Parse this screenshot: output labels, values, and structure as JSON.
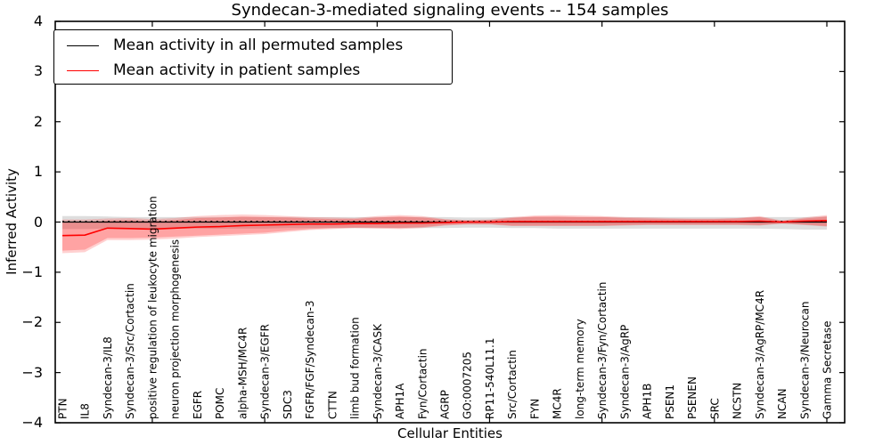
{
  "title": "Syndecan-3-mediated signaling events -- 154 samples",
  "legend": {
    "position": "upper left",
    "items": [
      {
        "label": "Mean activity in all permuted samples",
        "color": "#000000"
      },
      {
        "label": "Mean activity in patient samples",
        "color": "#ff0000"
      }
    ]
  },
  "colors": {
    "patient_line": "#ff0000",
    "permuted_line": "#000000",
    "patient_band_fill": "rgba(255,0,0,0.18)",
    "patient_band_inner_fill": "rgba(255,0,0,0.22)",
    "permuted_band_fill": "rgba(0,0,0,0.13)",
    "axis": "#000000",
    "background": "#ffffff"
  },
  "chart_data": {
    "type": "line",
    "title": "Syndecan-3-mediated signaling events -- 154 samples",
    "xlabel": "Cellular Entities",
    "ylabel": "Inferred Activity",
    "ylim": [
      -4,
      4
    ],
    "y_ticks": [
      4,
      3,
      2,
      1,
      0,
      -1,
      -2,
      -3,
      -4
    ],
    "grid": false,
    "legend_position": "upper left",
    "x_major_tick_indices": [
      4,
      9,
      14,
      19,
      24,
      29,
      34
    ],
    "categories": [
      "PTN",
      "IL8",
      "Syndecan-3/IL8",
      "Syndecan-3/Src/Cortactin",
      "positive regulation of leukocyte migration",
      "neuron projection morphogenesis",
      "EGFR",
      "POMC",
      "alpha-MSH/MC4R",
      "Syndecan-3/EGFR",
      "SDC3",
      "FGFR/FGF/Syndecan-3",
      "CTTN",
      "limb bud formation",
      "Syndecan-3/CASK",
      "APH1A",
      "Fyn/Cortactin",
      "AGRP",
      "GO:0007205",
      "RP11-540L11.1",
      "Src/Cortactin",
      "FYN",
      "MC4R",
      "long-term memory",
      "Syndecan-3/Fyn/Cortactin",
      "Syndecan-3/AgRP",
      "APH1B",
      "PSEN1",
      "PSENEN",
      "SRC",
      "NCSTN",
      "Syndecan-3/AgRP/MC4R",
      "NCAN",
      "Syndecan-3/Neurocan",
      "Gamma Secretase"
    ],
    "series": [
      {
        "name": "Mean activity in all permuted samples",
        "color": "#000000",
        "line_style": "solid",
        "values": [
          0,
          0,
          0,
          0,
          0,
          0,
          0,
          0,
          0,
          0,
          0,
          0,
          0,
          0,
          0,
          0,
          0,
          0,
          0,
          0,
          0,
          0,
          0,
          0,
          0,
          0,
          0,
          0,
          0,
          0,
          0,
          0,
          0,
          0,
          0
        ]
      },
      {
        "name": "Permuted samples reference (dotted)",
        "color": "#000000",
        "line_style": "dotted",
        "values": [
          0.015,
          0.015,
          0.015,
          0.015,
          0.015,
          0.015,
          0.015,
          0.015,
          0.015,
          0.015,
          0.015,
          0.015,
          0.015,
          0.015,
          0.015,
          0.015,
          0.015,
          0.015,
          0.015,
          0.015,
          0.015,
          0.015,
          0.015,
          0.015,
          0.015,
          0.015,
          0.015,
          0.015,
          0.015,
          0.015,
          0.015,
          0.015,
          0.015,
          0.015,
          0.015
        ]
      },
      {
        "name": "Mean activity in patient samples",
        "color": "#ff0000",
        "line_style": "solid",
        "values": [
          -0.27,
          -0.26,
          -0.12,
          -0.13,
          -0.14,
          -0.12,
          -0.1,
          -0.09,
          -0.07,
          -0.06,
          -0.05,
          -0.04,
          -0.04,
          -0.03,
          -0.03,
          -0.02,
          -0.02,
          -0.01,
          0.0,
          0.0,
          0.01,
          0.01,
          0.01,
          0.01,
          0.01,
          0.01,
          0.01,
          0.01,
          0.01,
          0.01,
          0.01,
          0.02,
          0.0,
          0.02,
          0.03
        ]
      }
    ],
    "bands": [
      {
        "name": "permuted-samples-range",
        "fill": "rgba(0,0,0,0.13)",
        "hi": [
          0.12,
          0.12,
          0.11,
          0.1,
          0.1,
          0.1,
          0.1,
          0.1,
          0.1,
          0.1,
          0.1,
          0.1,
          0.1,
          0.1,
          0.1,
          0.1,
          0.1,
          0.1,
          0.09,
          0.09,
          0.1,
          0.1,
          0.1,
          0.1,
          0.1,
          0.1,
          0.1,
          0.1,
          0.1,
          0.1,
          0.1,
          0.1,
          0.1,
          0.1,
          0.11
        ],
        "lo": [
          -0.14,
          -0.14,
          -0.13,
          -0.13,
          -0.13,
          -0.13,
          -0.13,
          -0.13,
          -0.13,
          -0.13,
          -0.12,
          -0.12,
          -0.12,
          -0.12,
          -0.12,
          -0.12,
          -0.12,
          -0.12,
          -0.11,
          -0.11,
          -0.12,
          -0.12,
          -0.13,
          -0.13,
          -0.13,
          -0.13,
          -0.13,
          -0.13,
          -0.13,
          -0.13,
          -0.13,
          -0.13,
          -0.14,
          -0.15,
          -0.15
        ]
      },
      {
        "name": "patient-samples-range-outer",
        "fill": "rgba(255,0,0,0.18)",
        "hi": [
          0.05,
          0.05,
          0.07,
          0.08,
          0.06,
          0.08,
          0.12,
          0.14,
          0.15,
          0.14,
          0.12,
          0.1,
          0.09,
          0.08,
          0.12,
          0.14,
          0.12,
          0.06,
          0.04,
          0.05,
          0.1,
          0.13,
          0.14,
          0.13,
          0.12,
          0.1,
          0.09,
          0.08,
          0.07,
          0.07,
          0.08,
          0.12,
          0.03,
          0.09,
          0.14
        ],
        "lo": [
          -0.62,
          -0.6,
          -0.36,
          -0.36,
          -0.35,
          -0.33,
          -0.3,
          -0.28,
          -0.26,
          -0.24,
          -0.2,
          -0.16,
          -0.14,
          -0.12,
          -0.13,
          -0.14,
          -0.12,
          -0.07,
          -0.05,
          -0.05,
          -0.08,
          -0.08,
          -0.08,
          -0.08,
          -0.08,
          -0.07,
          -0.06,
          -0.06,
          -0.06,
          -0.06,
          -0.06,
          -0.07,
          -0.03,
          -0.06,
          -0.09
        ]
      },
      {
        "name": "patient-samples-range-inner",
        "fill": "rgba(255,0,0,0.22)",
        "hi": [
          -0.01,
          -0.01,
          0.03,
          0.04,
          0.02,
          0.04,
          0.08,
          0.09,
          0.11,
          0.1,
          0.09,
          0.07,
          0.06,
          0.06,
          0.09,
          0.11,
          0.09,
          0.05,
          0.03,
          0.04,
          0.08,
          0.11,
          0.11,
          0.1,
          0.1,
          0.08,
          0.07,
          0.06,
          0.06,
          0.06,
          0.07,
          0.1,
          0.02,
          0.07,
          0.11
        ],
        "lo": [
          -0.57,
          -0.55,
          -0.32,
          -0.32,
          -0.31,
          -0.29,
          -0.27,
          -0.25,
          -0.23,
          -0.21,
          -0.17,
          -0.14,
          -0.12,
          -0.11,
          -0.11,
          -0.12,
          -0.1,
          -0.06,
          -0.04,
          -0.04,
          -0.07,
          -0.07,
          -0.07,
          -0.07,
          -0.07,
          -0.06,
          -0.05,
          -0.05,
          -0.05,
          -0.05,
          -0.05,
          -0.06,
          -0.03,
          -0.05,
          -0.08
        ]
      }
    ]
  }
}
